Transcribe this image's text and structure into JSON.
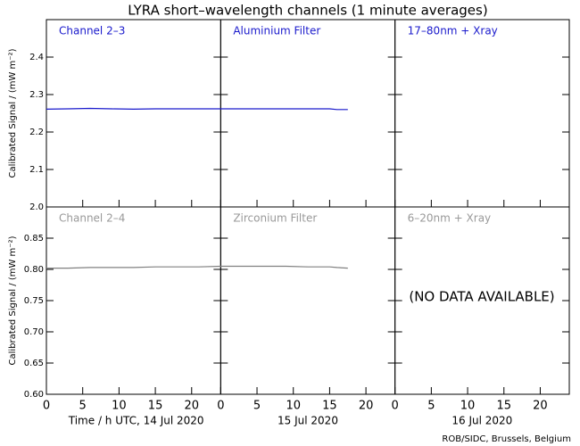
{
  "chart_data": {
    "type": "line",
    "title": "LYRA short–wavelength channels (1 minute averages)",
    "annotation": "(NO DATA AVAILABLE)",
    "footer": "ROB/SIDC, Brussels, Belgium",
    "xlabels": [
      "Time / h UTC, 14 Jul 2020",
      "15 Jul 2020",
      "16 Jul 2020"
    ],
    "xlim": [
      0,
      72
    ],
    "xticks": [
      0,
      5,
      10,
      15,
      20
    ],
    "rows": [
      {
        "ylabel": "Calibrated Signal / (mW m⁻²)",
        "ylim": [
          2.0,
          2.5
        ],
        "yticks": [
          {
            "value": 2.0,
            "label": "2.0"
          },
          2.1,
          2.2,
          2.3,
          2.4
        ],
        "labels": [
          "Channel 2–3",
          "Aluminium Filter",
          "17–80nm + Xray"
        ],
        "label_color": "#1a1acc",
        "color": "#1a1acc",
        "x": [
          0,
          3,
          6,
          9,
          12,
          15,
          18,
          21,
          24,
          27,
          30,
          33,
          36,
          39,
          40,
          41.5
        ],
        "values": [
          2.261,
          2.262,
          2.263,
          2.262,
          2.261,
          2.262,
          2.262,
          2.262,
          2.262,
          2.262,
          2.262,
          2.262,
          2.262,
          2.262,
          2.26,
          2.26
        ]
      },
      {
        "ylabel": "Calibrated Signal / (mW m⁻²)",
        "ylim": [
          0.6,
          0.9
        ],
        "yticks": [
          {
            "value": 0.6,
            "label": "0.60"
          },
          0.65,
          {
            "value": 0.7,
            "label": "0.70"
          },
          0.75,
          {
            "value": 0.8,
            "label": "0.80"
          },
          0.85
        ],
        "labels": [
          "Channel 2–4",
          "Zirconium Filter",
          "6–20nm + Xray"
        ],
        "label_color": "#999999",
        "color": "#808080",
        "x": [
          0,
          3,
          6,
          9,
          12,
          15,
          18,
          21,
          24,
          27,
          30,
          33,
          36,
          39,
          40,
          41.5
        ],
        "values": [
          0.802,
          0.802,
          0.803,
          0.803,
          0.803,
          0.804,
          0.804,
          0.804,
          0.805,
          0.805,
          0.805,
          0.805,
          0.804,
          0.804,
          0.803,
          0.802
        ]
      }
    ]
  }
}
